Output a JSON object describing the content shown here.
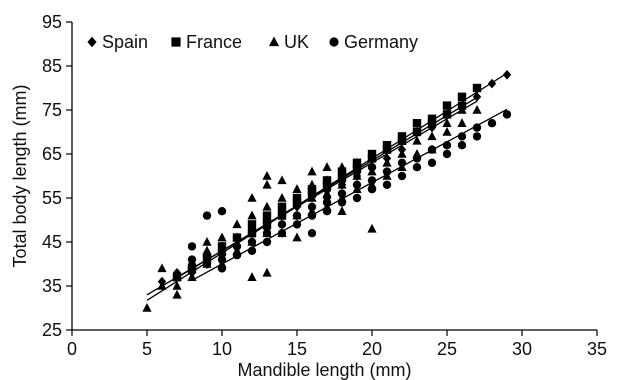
{
  "chart_data": {
    "type": "scatter",
    "xlabel": "Mandible length (mm)",
    "ylabel": "Total body length (mm)",
    "xlim": [
      0,
      35
    ],
    "ylim": [
      25,
      95
    ],
    "xticks": [
      0,
      5,
      10,
      15,
      20,
      25,
      30,
      35
    ],
    "yticks": [
      25,
      35,
      45,
      55,
      65,
      75,
      85,
      95
    ],
    "xtick_labels": [
      "0",
      "5",
      "10",
      "15",
      "20",
      "25",
      "30",
      "35"
    ],
    "ytick_labels": [
      "25",
      "35",
      "45",
      "55",
      "65",
      "75",
      "85",
      "95"
    ],
    "grid": false,
    "legend_position": "top-left",
    "series": [
      {
        "name": "Spain",
        "marker": "diamond",
        "color": "#000000",
        "trend": {
          "slope": 2.15,
          "intercept": 21.0,
          "x_range": [
            5,
            29
          ]
        },
        "points": [
          [
            6,
            36
          ],
          [
            7,
            37
          ],
          [
            7,
            38
          ],
          [
            8,
            38
          ],
          [
            8,
            40
          ],
          [
            9,
            40
          ],
          [
            9,
            42
          ],
          [
            10,
            42
          ],
          [
            10,
            44
          ],
          [
            11,
            44
          ],
          [
            11,
            46
          ],
          [
            12,
            45
          ],
          [
            12,
            47
          ],
          [
            13,
            48
          ],
          [
            13,
            50
          ],
          [
            14,
            49
          ],
          [
            14,
            51
          ],
          [
            15,
            51
          ],
          [
            15,
            53
          ],
          [
            16,
            53
          ],
          [
            16,
            56
          ],
          [
            17,
            55
          ],
          [
            17,
            58
          ],
          [
            18,
            58
          ],
          [
            18,
            60
          ],
          [
            19,
            60
          ],
          [
            19,
            62
          ],
          [
            20,
            62
          ],
          [
            20,
            64
          ],
          [
            21,
            64
          ],
          [
            21,
            66
          ],
          [
            22,
            66
          ],
          [
            22,
            68
          ],
          [
            23,
            70
          ],
          [
            24,
            71
          ],
          [
            25,
            74
          ],
          [
            26,
            76
          ],
          [
            27,
            78
          ],
          [
            28,
            81
          ],
          [
            29,
            83
          ]
        ]
      },
      {
        "name": "France",
        "marker": "square",
        "color": "#000000",
        "trend": {
          "slope": 2.05,
          "intercept": 22.5,
          "x_range": [
            7,
            27
          ]
        },
        "points": [
          [
            7,
            37
          ],
          [
            8,
            39
          ],
          [
            9,
            41
          ],
          [
            10,
            44
          ],
          [
            11,
            46
          ],
          [
            12,
            47
          ],
          [
            12,
            49
          ],
          [
            13,
            49
          ],
          [
            13,
            51
          ],
          [
            14,
            51
          ],
          [
            14,
            53
          ],
          [
            15,
            54
          ],
          [
            15,
            55
          ],
          [
            16,
            56
          ],
          [
            16,
            57
          ],
          [
            17,
            58
          ],
          [
            17,
            59
          ],
          [
            18,
            60
          ],
          [
            18,
            61
          ],
          [
            19,
            62
          ],
          [
            19,
            63
          ],
          [
            20,
            64
          ],
          [
            20,
            65
          ],
          [
            21,
            66
          ],
          [
            21,
            67
          ],
          [
            22,
            68
          ],
          [
            22,
            69
          ],
          [
            23,
            70
          ],
          [
            23,
            72
          ],
          [
            24,
            72
          ],
          [
            24,
            73
          ],
          [
            25,
            74
          ],
          [
            25,
            76
          ],
          [
            26,
            76
          ],
          [
            26,
            78
          ],
          [
            27,
            80
          ]
        ]
      },
      {
        "name": "UK",
        "marker": "triangle",
        "color": "#000000",
        "trend": {
          "slope": 2.0,
          "intercept": 23.0,
          "x_range": [
            5,
            27
          ]
        },
        "points": [
          [
            5,
            30
          ],
          [
            6,
            35
          ],
          [
            6,
            39
          ],
          [
            7,
            33
          ],
          [
            7,
            35
          ],
          [
            7,
            37
          ],
          [
            8,
            37
          ],
          [
            8,
            40
          ],
          [
            9,
            40
          ],
          [
            9,
            43
          ],
          [
            9,
            45
          ],
          [
            10,
            40
          ],
          [
            10,
            43
          ],
          [
            10,
            46
          ],
          [
            11,
            43
          ],
          [
            11,
            46
          ],
          [
            11,
            49
          ],
          [
            12,
            37
          ],
          [
            12,
            45
          ],
          [
            12,
            48
          ],
          [
            12,
            51
          ],
          [
            12,
            55
          ],
          [
            13,
            38
          ],
          [
            13,
            47
          ],
          [
            13,
            50
          ],
          [
            13,
            53
          ],
          [
            13,
            58
          ],
          [
            13,
            60
          ],
          [
            14,
            47
          ],
          [
            14,
            52
          ],
          [
            14,
            55
          ],
          [
            14,
            59
          ],
          [
            15,
            46
          ],
          [
            15,
            51
          ],
          [
            15,
            54
          ],
          [
            15,
            57
          ],
          [
            16,
            52
          ],
          [
            16,
            55
          ],
          [
            16,
            58
          ],
          [
            16,
            61
          ],
          [
            17,
            53
          ],
          [
            17,
            56
          ],
          [
            17,
            59
          ],
          [
            17,
            62
          ],
          [
            18,
            52
          ],
          [
            18,
            55
          ],
          [
            18,
            58
          ],
          [
            18,
            62
          ],
          [
            19,
            57
          ],
          [
            19,
            60
          ],
          [
            19,
            63
          ],
          [
            20,
            48
          ],
          [
            20,
            58
          ],
          [
            20,
            61
          ],
          [
            20,
            64
          ],
          [
            21,
            60
          ],
          [
            21,
            63
          ],
          [
            21,
            66
          ],
          [
            22,
            62
          ],
          [
            22,
            65
          ],
          [
            22,
            68
          ],
          [
            23,
            65
          ],
          [
            23,
            68
          ],
          [
            24,
            66
          ],
          [
            24,
            69
          ],
          [
            25,
            70
          ],
          [
            25,
            72
          ],
          [
            26,
            72
          ],
          [
            26,
            75
          ],
          [
            27,
            75
          ]
        ]
      },
      {
        "name": "Germany",
        "marker": "circle",
        "color": "#000000",
        "trend": {
          "slope": 1.85,
          "intercept": 21.5,
          "x_range": [
            8,
            29
          ]
        },
        "points": [
          [
            8,
            41
          ],
          [
            8,
            44
          ],
          [
            9,
            40
          ],
          [
            9,
            42
          ],
          [
            9,
            51
          ],
          [
            10,
            39
          ],
          [
            10,
            41
          ],
          [
            10,
            43
          ],
          [
            10,
            52
          ],
          [
            11,
            42
          ],
          [
            11,
            44
          ],
          [
            11,
            46
          ],
          [
            12,
            43
          ],
          [
            12,
            45
          ],
          [
            12,
            48
          ],
          [
            13,
            45
          ],
          [
            13,
            47
          ],
          [
            13,
            50
          ],
          [
            14,
            47
          ],
          [
            14,
            49
          ],
          [
            14,
            52
          ],
          [
            15,
            49
          ],
          [
            15,
            51
          ],
          [
            15,
            54
          ],
          [
            16,
            47
          ],
          [
            16,
            51
          ],
          [
            16,
            53
          ],
          [
            16,
            56
          ],
          [
            17,
            52
          ],
          [
            17,
            54
          ],
          [
            17,
            57
          ],
          [
            18,
            54
          ],
          [
            18,
            56
          ],
          [
            18,
            59
          ],
          [
            19,
            55
          ],
          [
            19,
            58
          ],
          [
            19,
            61
          ],
          [
            20,
            57
          ],
          [
            20,
            59
          ],
          [
            20,
            62
          ],
          [
            21,
            58
          ],
          [
            21,
            61
          ],
          [
            22,
            60
          ],
          [
            22,
            63
          ],
          [
            23,
            62
          ],
          [
            23,
            64
          ],
          [
            24,
            63
          ],
          [
            24,
            66
          ],
          [
            25,
            65
          ],
          [
            25,
            67
          ],
          [
            26,
            67
          ],
          [
            26,
            69
          ],
          [
            27,
            69
          ],
          [
            27,
            71
          ],
          [
            28,
            72
          ],
          [
            29,
            74
          ]
        ]
      }
    ]
  }
}
